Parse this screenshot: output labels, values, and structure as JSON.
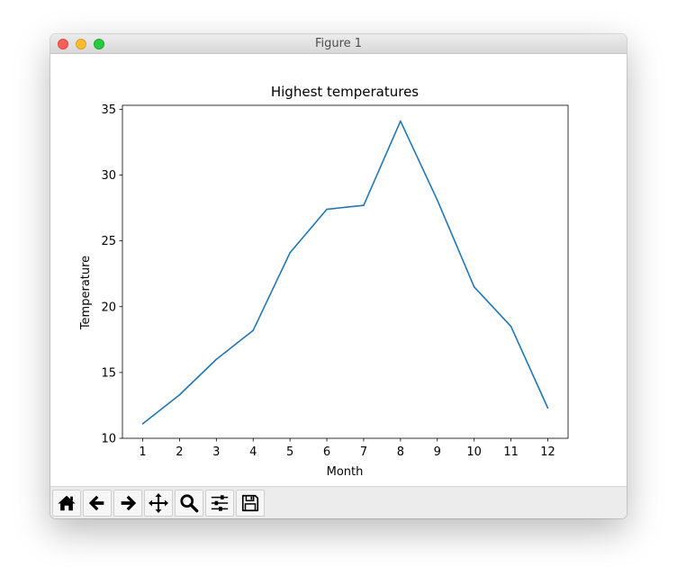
{
  "window": {
    "title": "Figure 1"
  },
  "toolbar": {
    "buttons": [
      {
        "icon": "home-icon"
      },
      {
        "icon": "back-arrow-icon"
      },
      {
        "icon": "forward-arrow-icon"
      },
      {
        "icon": "pan-move-icon"
      },
      {
        "icon": "zoom-magnifier-icon"
      },
      {
        "icon": "subplots-sliders-icon"
      },
      {
        "icon": "save-floppy-icon"
      }
    ]
  },
  "colors": {
    "line": "#1f77b4",
    "axes": "#000000",
    "toolbar_bg": "#ececec"
  },
  "chart_data": {
    "type": "line",
    "title": "Highest temperatures",
    "xlabel": "Month",
    "ylabel": "Temperature",
    "x": [
      1,
      2,
      3,
      4,
      5,
      6,
      7,
      8,
      9,
      10,
      11,
      12
    ],
    "y": [
      11.1,
      13.3,
      16.0,
      18.2,
      24.1,
      27.4,
      27.7,
      34.1,
      28.1,
      21.5,
      18.5,
      12.3
    ],
    "xlim": [
      0.45,
      12.55
    ],
    "ylim": [
      10.0,
      35.3
    ],
    "xticks": [
      "1",
      "2",
      "3",
      "4",
      "5",
      "6",
      "7",
      "8",
      "9",
      "10",
      "11",
      "12"
    ],
    "yticks": [
      "10",
      "15",
      "20",
      "25",
      "30",
      "35"
    ],
    "grid": false,
    "legend": "none"
  }
}
